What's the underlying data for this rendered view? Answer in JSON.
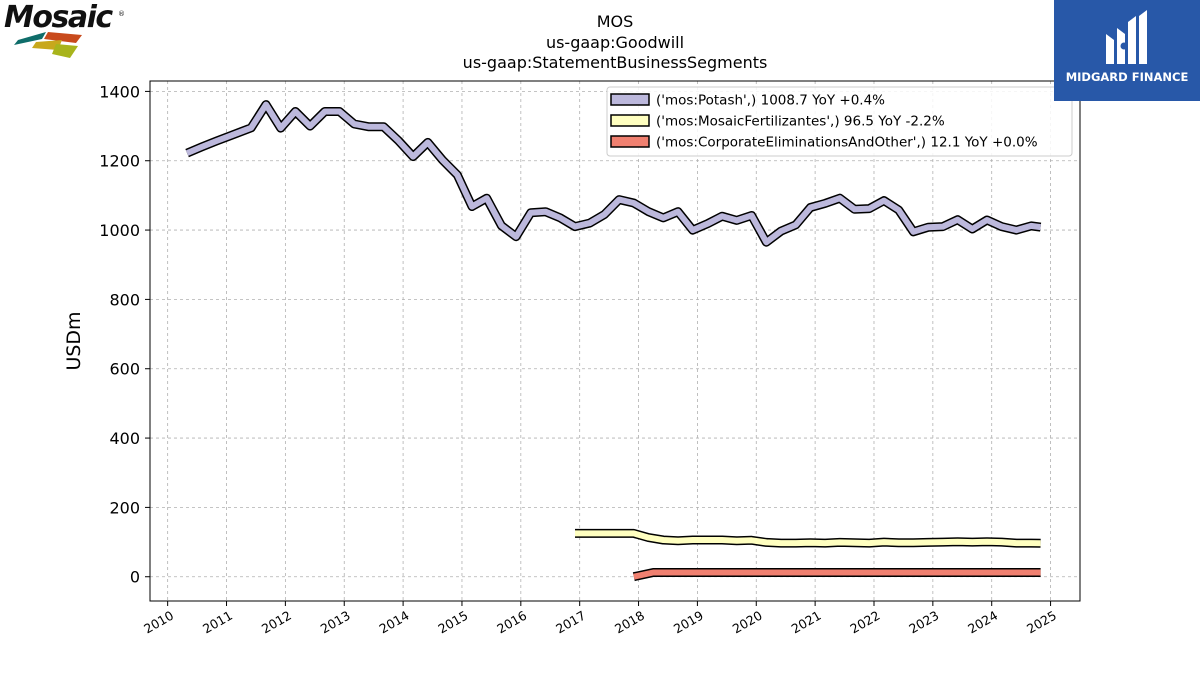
{
  "logos": {
    "left_brand": "Mosaic",
    "left_reg": "®",
    "right_brand": "MIDGARD FINANCE",
    "right_bg": "#2858a8"
  },
  "chart_data": {
    "type": "line",
    "title_lines": [
      "MOS",
      "us-gaap:Goodwill",
      "us-gaap:StatementBusinessSegments"
    ],
    "ylabel": "USDm",
    "xlabel": "",
    "xlim": [
      2009.7,
      2025.5
    ],
    "ylim": [
      -70,
      1430
    ],
    "x_ticks": [
      2010,
      2011,
      2012,
      2013,
      2014,
      2015,
      2016,
      2017,
      2018,
      2019,
      2020,
      2021,
      2022,
      2023,
      2024,
      2025
    ],
    "x_tick_labels": [
      "2010",
      "2011",
      "2012",
      "2013",
      "2014",
      "2015",
      "2016",
      "2017",
      "2018",
      "2019",
      "2020",
      "2021",
      "2022",
      "2023",
      "2024",
      "2025"
    ],
    "y_ticks": [
      0,
      200,
      400,
      600,
      800,
      1000,
      1200,
      1400
    ],
    "y_tick_labels": [
      "0",
      "200",
      "400",
      "600",
      "800",
      "1000",
      "1200",
      "1400"
    ],
    "grid": true,
    "legend_position": "top-right",
    "series": [
      {
        "name": "('mos:Potash',) 1008.7 YoY +0.4%",
        "color": "#bcb8dc",
        "x": [
          2010.33,
          2010.58,
          2010.83,
          2011.08,
          2011.42,
          2011.67,
          2011.92,
          2012.17,
          2012.42,
          2012.67,
          2012.92,
          2013.17,
          2013.42,
          2013.67,
          2013.92,
          2014.17,
          2014.42,
          2014.67,
          2014.92,
          2015.17,
          2015.42,
          2015.67,
          2015.92,
          2016.17,
          2016.42,
          2016.67,
          2016.92,
          2017.17,
          2017.42,
          2017.67,
          2017.92,
          2018.17,
          2018.42,
          2018.67,
          2018.92,
          2019.17,
          2019.42,
          2019.67,
          2019.92,
          2020.17,
          2020.42,
          2020.67,
          2020.92,
          2021.17,
          2021.42,
          2021.67,
          2021.92,
          2022.17,
          2022.42,
          2022.67,
          2022.92,
          2023.17,
          2023.42,
          2023.67,
          2023.92,
          2024.17,
          2024.42,
          2024.67,
          2024.83
        ],
        "values": [
          1222,
          1240,
          1257,
          1273,
          1295,
          1362,
          1294,
          1342,
          1300,
          1342,
          1342,
          1306,
          1298,
          1298,
          1258,
          1212,
          1253,
          1202,
          1159,
          1068,
          1092,
          1013,
          981,
          1050,
          1053,
          1035,
          1010,
          1020,
          1045,
          1088,
          1078,
          1053,
          1035,
          1053,
          1000,
          1018,
          1040,
          1028,
          1042,
          965,
          997,
          1015,
          1065,
          1077,
          1092,
          1060,
          1062,
          1085,
          1058,
          995,
          1008,
          1010,
          1030,
          1003,
          1029,
          1010,
          1000,
          1012,
          1008.7
        ]
      },
      {
        "name": "('mos:MosaicFertilizantes',) 96.5 YoY -2.2%",
        "color": "#ffffc0",
        "x": [
          2016.92,
          2017.17,
          2017.42,
          2017.67,
          2017.92,
          2018.17,
          2018.42,
          2018.67,
          2018.92,
          2019.17,
          2019.42,
          2019.67,
          2019.92,
          2020.17,
          2020.42,
          2020.67,
          2020.92,
          2021.17,
          2021.42,
          2021.67,
          2021.92,
          2022.17,
          2022.42,
          2022.67,
          2022.92,
          2023.17,
          2023.42,
          2023.67,
          2023.92,
          2024.17,
          2024.42,
          2024.67,
          2024.83
        ],
        "values": [
          125,
          125,
          125,
          125,
          125,
          113,
          106,
          104,
          106,
          106,
          106,
          104,
          105,
          99,
          97,
          97,
          98,
          97,
          99,
          98,
          97,
          100,
          98,
          98,
          99,
          100,
          101,
          100,
          101,
          100,
          97,
          97,
          96.5
        ]
      },
      {
        "name": "('mos:CorporateEliminationsAndOther',) 12.1 YoY +0.0%",
        "color": "#f08070",
        "x": [
          2017.92,
          2018.25,
          2018.5,
          2018.75,
          2019.0,
          2019.5,
          2020.0,
          2020.5,
          2021.0,
          2021.5,
          2022.0,
          2022.5,
          2023.0,
          2023.5,
          2024.0,
          2024.5,
          2024.83
        ],
        "values": [
          0,
          12.1,
          12.1,
          12.1,
          12.1,
          12.1,
          12.1,
          12.1,
          12.1,
          12.1,
          12.1,
          12.1,
          12.1,
          12.1,
          12.1,
          12.1,
          12.1
        ]
      }
    ]
  }
}
